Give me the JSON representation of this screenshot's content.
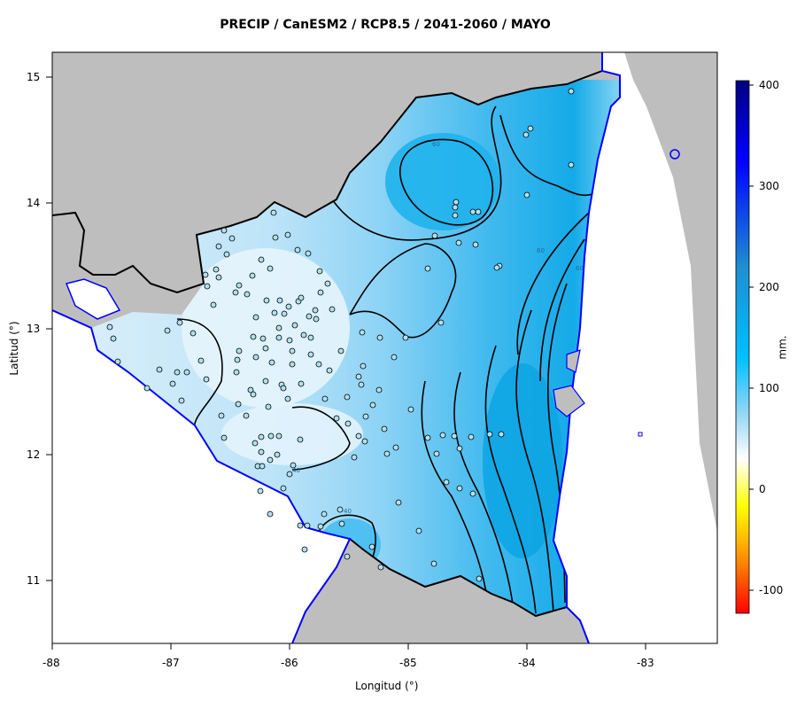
{
  "title": "PRECIP / CanESM2 / RCP8.5 / 2041-2060 / MAYO",
  "x_axis": {
    "label": "Longitud (°)",
    "ticks": [
      "-88",
      "-87",
      "-86",
      "-85",
      "-84",
      "-83"
    ]
  },
  "y_axis": {
    "label": "Latitud (°)",
    "ticks": [
      "15",
      "14",
      "13",
      "12",
      "11"
    ]
  },
  "colorbar": {
    "label": "mm.",
    "ticks": [
      "400",
      "300",
      "200",
      "100",
      "0",
      "-100"
    ],
    "colors": [
      "#000080",
      "#0000ff",
      "#1e90ff",
      "#00bfff",
      "#87ceeb",
      "#ffffff",
      "#ffff00",
      "#ff8c00",
      "#ff0000"
    ]
  },
  "contour_labels": [
    "60",
    "60",
    "40",
    "60",
    "40"
  ],
  "colors": {
    "land_outside": "#bebebe",
    "coastline": "#0000ff",
    "border": "#000000",
    "station_fill": "#b0e0f0"
  }
}
